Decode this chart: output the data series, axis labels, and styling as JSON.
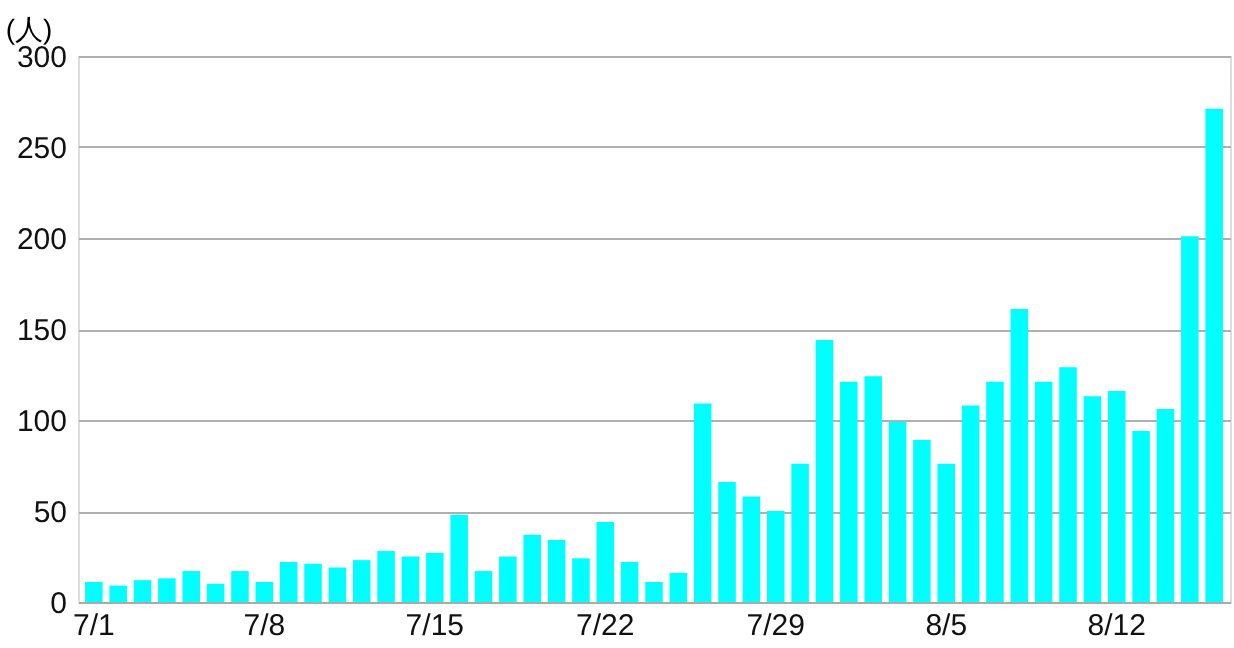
{
  "chart_data": {
    "type": "bar",
    "ylabel": "(人)",
    "color": "#00ffff",
    "categories": [
      "7/1",
      null,
      null,
      null,
      null,
      null,
      null,
      "7/8",
      null,
      null,
      null,
      null,
      null,
      null,
      "7/15",
      null,
      null,
      null,
      null,
      null,
      null,
      "7/22",
      null,
      null,
      null,
      null,
      null,
      null,
      "7/29",
      null,
      null,
      null,
      null,
      null,
      null,
      "8/5",
      null,
      null,
      null,
      null,
      null,
      null,
      "8/12",
      null,
      null,
      null,
      null
    ],
    "values": [
      11,
      9,
      12,
      13,
      17,
      10,
      17,
      11,
      22,
      21,
      19,
      23,
      28,
      25,
      27,
      48,
      17,
      25,
      37,
      34,
      24,
      44,
      22,
      11,
      16,
      109,
      66,
      58,
      50,
      76,
      144,
      121,
      124,
      99,
      89,
      76,
      108,
      121,
      161,
      121,
      129,
      113,
      116,
      94,
      106,
      201,
      271
    ],
    "ylim": [
      0,
      300
    ],
    "yticks": [
      0,
      50,
      100,
      150,
      200,
      250,
      300
    ],
    "grid": "y"
  }
}
